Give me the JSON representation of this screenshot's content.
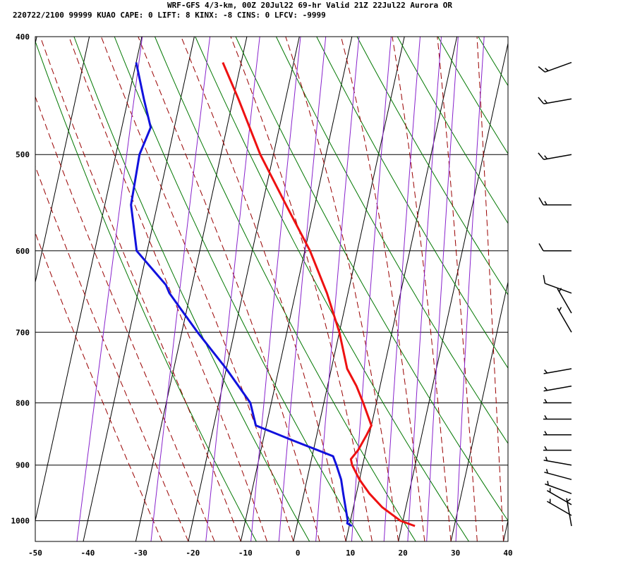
{
  "header": {
    "line1": "WRF-GFS 4/3-km, 00Z 20Jul22 69-hr Valid 21Z 22Jul22 Aurora OR",
    "line2": "220722/2100 99999  KUAO    CAPE:     0 LIFT:     8 KINX:    -8 CINS:     0 LFCV: -9999"
  },
  "colors": {
    "temperature": "#ee1111",
    "dewpoint": "#1111dd",
    "isotherm": "#000000",
    "dry_adiabat": "#007700",
    "moist_adiabat": "#990000",
    "mixing_ratio": "#8822cc",
    "wind_barb": "#000000"
  },
  "chart_data": {
    "type": "line",
    "subtype": "skew-t log-p sounding",
    "xlim": [
      -50,
      40
    ],
    "xticks": [
      "-50",
      "-40",
      "-30",
      "-20",
      "-10",
      "0",
      "10",
      "20",
      "30",
      "40"
    ],
    "ylim": [
      1040,
      400
    ],
    "yscale": "log",
    "yticks": [
      "400",
      "500",
      "600",
      "700",
      "800",
      "900",
      "1000"
    ],
    "grid": true,
    "series": [
      {
        "key": "temperature",
        "color": "#ee1111",
        "points": [
          [
            1010,
            22.5
          ],
          [
            1000,
            19.5
          ],
          [
            975,
            15.5
          ],
          [
            950,
            12.5
          ],
          [
            925,
            10.0
          ],
          [
            900,
            8.0
          ],
          [
            890,
            7.5
          ],
          [
            875,
            8.5
          ],
          [
            850,
            9.5
          ],
          [
            835,
            10.0
          ],
          [
            800,
            7.5
          ],
          [
            775,
            5.5
          ],
          [
            750,
            3.0
          ],
          [
            700,
            0.0
          ],
          [
            650,
            -4.0
          ],
          [
            600,
            -9.0
          ],
          [
            550,
            -15.5
          ],
          [
            500,
            -22.5
          ],
          [
            450,
            -29.0
          ],
          [
            420,
            -33.5
          ]
        ]
      },
      {
        "key": "dewpoint",
        "color": "#1111dd",
        "points": [
          [
            1010,
            10.5
          ],
          [
            1005,
            9.5
          ],
          [
            1000,
            9.5
          ],
          [
            975,
            8.5
          ],
          [
            950,
            7.5
          ],
          [
            925,
            6.5
          ],
          [
            900,
            5.0
          ],
          [
            885,
            4.0
          ],
          [
            860,
            -4.0
          ],
          [
            835,
            -12.0
          ],
          [
            800,
            -14.0
          ],
          [
            750,
            -20.0
          ],
          [
            700,
            -27.0
          ],
          [
            650,
            -34.0
          ],
          [
            640,
            -35.0
          ],
          [
            600,
            -42.0
          ],
          [
            550,
            -45.0
          ],
          [
            500,
            -45.5
          ],
          [
            475,
            -44.5
          ],
          [
            450,
            -47.0
          ],
          [
            420,
            -50.0
          ]
        ]
      }
    ],
    "wind_barbs": [
      {
        "p": 1010,
        "dir": 350,
        "spd": 5
      },
      {
        "p": 990,
        "dir": 300,
        "spd": 5
      },
      {
        "p": 970,
        "dir": 300,
        "spd": 5
      },
      {
        "p": 950,
        "dir": 290,
        "spd": 5
      },
      {
        "p": 925,
        "dir": 285,
        "spd": 5
      },
      {
        "p": 900,
        "dir": 280,
        "spd": 5
      },
      {
        "p": 875,
        "dir": 270,
        "spd": 5
      },
      {
        "p": 850,
        "dir": 270,
        "spd": 5
      },
      {
        "p": 825,
        "dir": 270,
        "spd": 5
      },
      {
        "p": 800,
        "dir": 270,
        "spd": 5
      },
      {
        "p": 775,
        "dir": 260,
        "spd": 5
      },
      {
        "p": 750,
        "dir": 260,
        "spd": 5
      },
      {
        "p": 700,
        "dir": 330,
        "spd": 5
      },
      {
        "p": 675,
        "dir": 330,
        "spd": 5
      },
      {
        "p": 650,
        "dir": 290,
        "spd": 10
      },
      {
        "p": 600,
        "dir": 270,
        "spd": 10
      },
      {
        "p": 550,
        "dir": 270,
        "spd": 15
      },
      {
        "p": 500,
        "dir": 260,
        "spd": 15
      },
      {
        "p": 450,
        "dir": 260,
        "spd": 15
      },
      {
        "p": 420,
        "dir": 250,
        "spd": 15
      }
    ]
  }
}
